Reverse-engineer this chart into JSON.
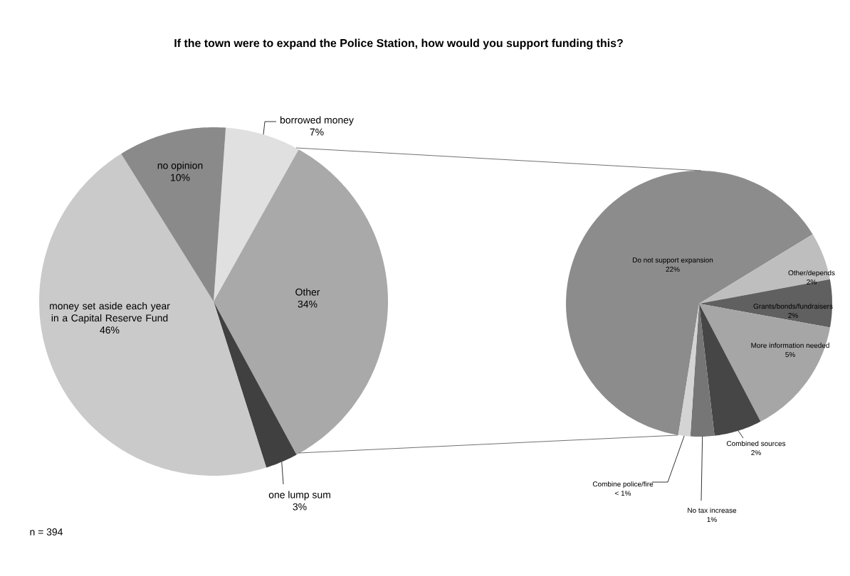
{
  "chart_data": [
    {
      "type": "pie",
      "title": "If the town were to expand the Police Station, how would you support funding this?",
      "categories": [
        "borrowed money",
        "Other",
        "one lump sum",
        "money set aside each year in a Capital Reserve Fund",
        "no opinion"
      ],
      "values": [
        7,
        34,
        3,
        46,
        10
      ],
      "value_labels": [
        "7%",
        "34%",
        "3%",
        "46%",
        "10%"
      ],
      "colors": [
        "#e0e0e0",
        "#a9a9a9",
        "#404040",
        "#cacaca",
        "#8a8a8a"
      ],
      "annotations": [
        "n = 394"
      ]
    },
    {
      "type": "pie",
      "categories": [
        "Do not support expansion",
        "Other/depends",
        "Grants/bonds/fundraisers",
        "More information needed",
        "Combined sources",
        "No tax increase",
        "Combine police/fire"
      ],
      "values": [
        22,
        2,
        2,
        5,
        2,
        1,
        0.5
      ],
      "value_labels": [
        "22%",
        "2%",
        "2%",
        "5%",
        "2%",
        "1%",
        "< 1%"
      ],
      "colors": [
        "#8c8c8c",
        "#bebebe",
        "#606060",
        "#a6a6a6",
        "#464646",
        "#767676",
        "#d4d4d4"
      ]
    }
  ]
}
